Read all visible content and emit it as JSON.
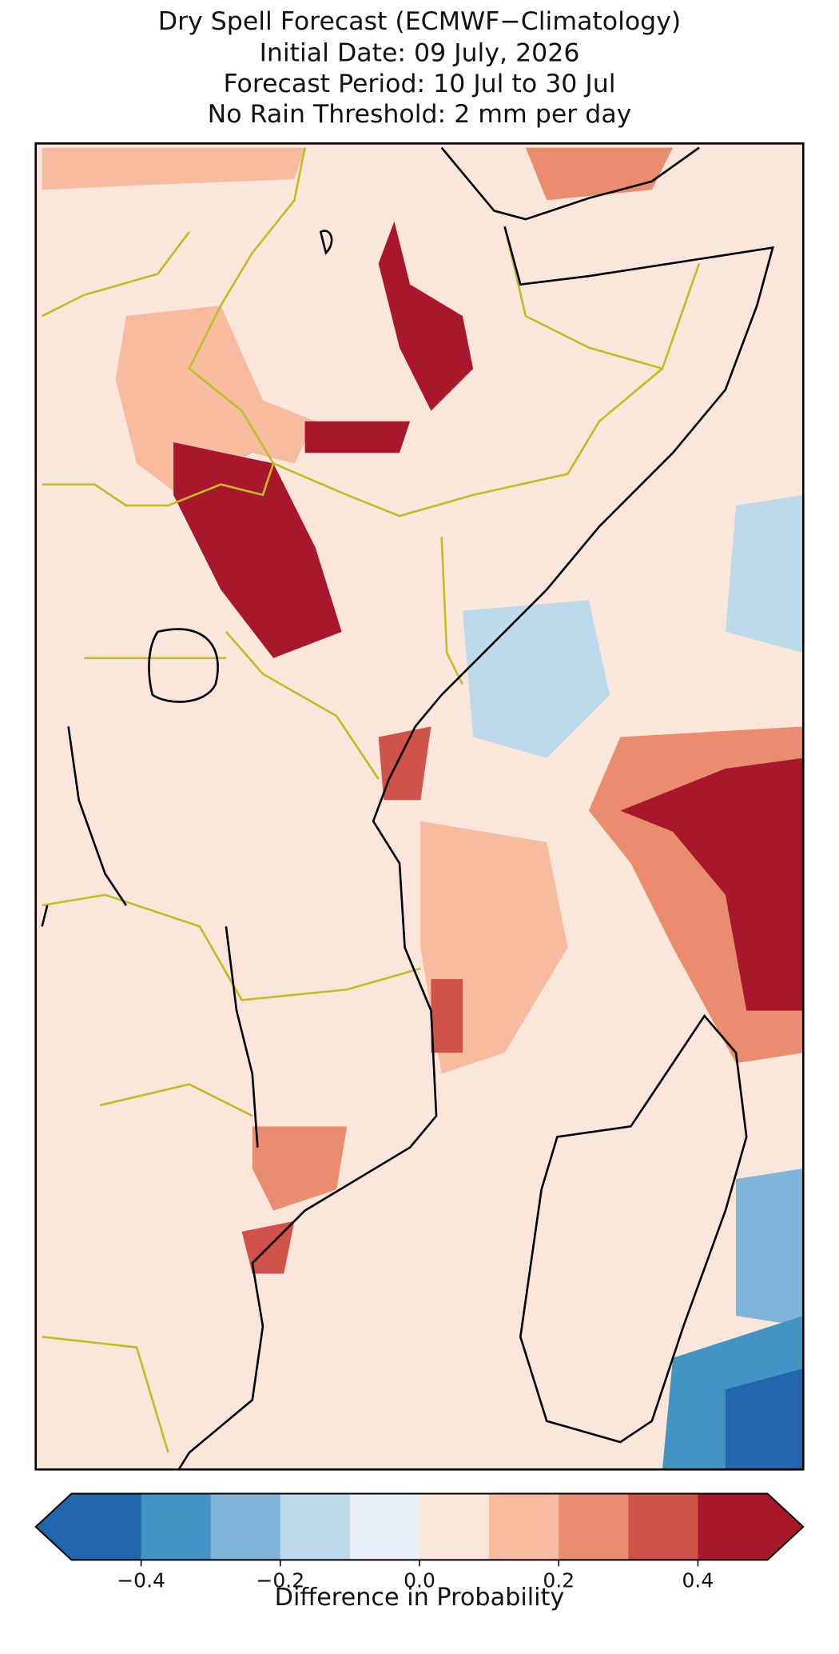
{
  "title": [
    "Dry Spell Forecast (ECMWF−Climatology)",
    "Initial Date: 09 July, 2026",
    "Forecast Period: 10 Jul to 30 Jul",
    "No Rain Threshold: 2 mm per day"
  ],
  "colorbar": {
    "label": "Difference in Probability",
    "boundaries": [
      -0.5,
      -0.4,
      -0.3,
      -0.2,
      -0.1,
      0.0,
      0.1,
      0.2,
      0.3,
      0.4,
      0.5
    ],
    "colors": [
      "#2166ac",
      "#4393c3",
      "#7eb6d9",
      "#bcdaea",
      "#e7eff4",
      "#fbe6dc",
      "#f7bba0",
      "#ea8c6e",
      "#cf5349",
      "#a8172b"
    ],
    "extend": "both",
    "ticks": [
      {
        "value": -0.4,
        "label": "−0.4"
      },
      {
        "value": -0.2,
        "label": "−0.2"
      },
      {
        "value": 0.0,
        "label": "0.0"
      },
      {
        "value": 0.2,
        "label": "0.2"
      },
      {
        "value": 0.4,
        "label": "0.4"
      }
    ]
  }
}
